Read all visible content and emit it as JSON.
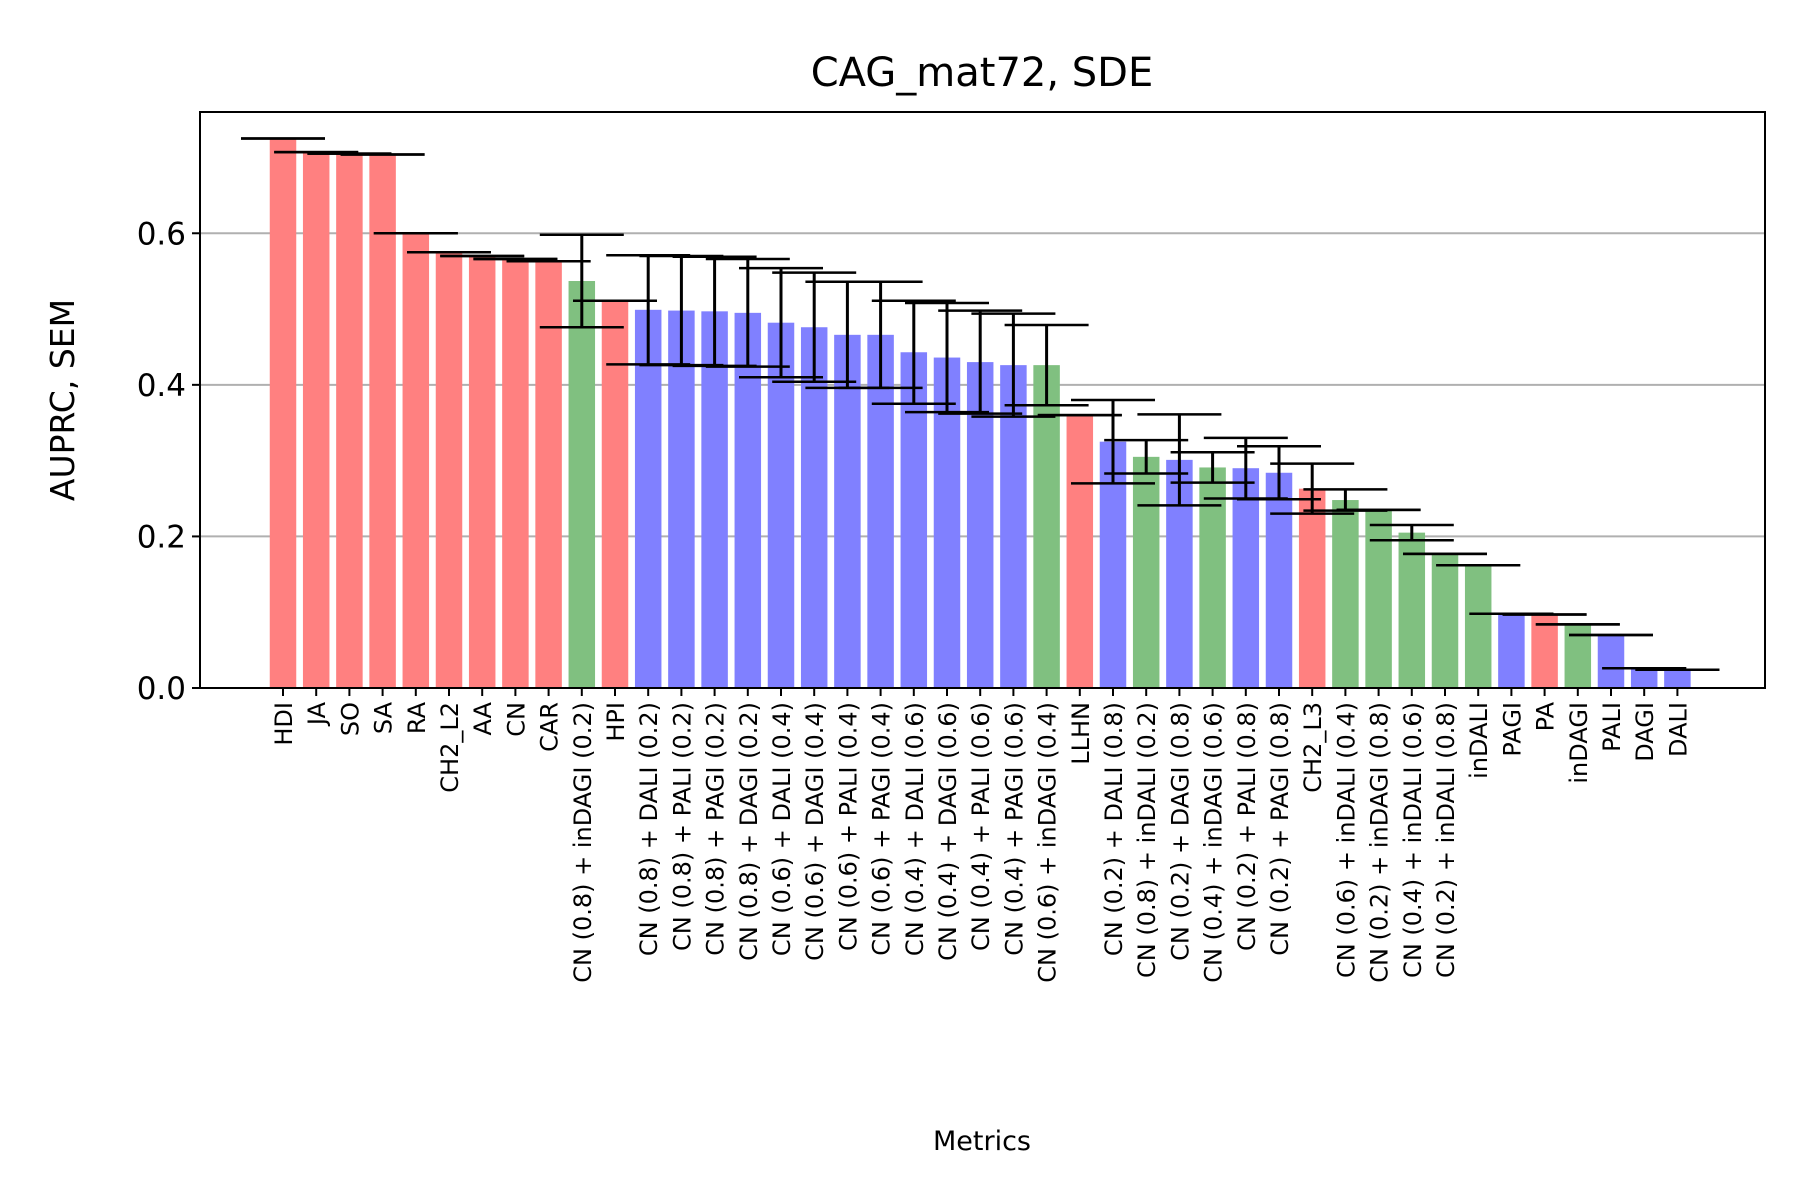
{
  "chart_data": {
    "type": "bar",
    "title": "CAG_mat72, SDE",
    "xlabel": "Metrics",
    "ylabel": "AUPRC, SEM",
    "ylim": [
      0,
      0.76
    ],
    "yticks": [
      "0.0",
      "0.2",
      "0.4",
      "0.6"
    ],
    "grid": "horizontal",
    "colors": {
      "red": "#ff8080",
      "green": "#80c080",
      "blue": "#8080ff"
    },
    "categories": [
      "HDI",
      "JA",
      "SO",
      "SA",
      "RA",
      "CH2_L2",
      "AA",
      "CN",
      "CAR",
      "CN (0.8) + inDAGI (0.2)",
      "HPI",
      "CN (0.8) + DALI (0.2)",
      "CN (0.8) + PALI (0.2)",
      "CN (0.8) + PAGI (0.2)",
      "CN (0.8) + DAGI (0.2)",
      "CN (0.6) + DALI (0.4)",
      "CN (0.6) + DAGI (0.4)",
      "CN (0.6) + PALI (0.4)",
      "CN (0.6) + PAGI (0.4)",
      "CN (0.4) + DALI (0.6)",
      "CN (0.4) + DAGI (0.6)",
      "CN (0.4) + PALI (0.6)",
      "CN (0.4) + PAGI (0.6)",
      "CN (0.6) + inDAGI (0.4)",
      "LLHN",
      "CN (0.2) + DALI (0.8)",
      "CN (0.8) + inDALI (0.2)",
      "CN (0.2) + DAGI (0.8)",
      "CN (0.4) + inDAGI (0.6)",
      "CN (0.2) + PALI (0.8)",
      "CN (0.2) + PAGI (0.8)",
      "CH2_L3",
      "CN (0.6) + inDALI (0.4)",
      "CN (0.2) + inDAGI (0.8)",
      "CN (0.4) + inDALI (0.6)",
      "CN (0.2) + inDALI (0.8)",
      "inDALI",
      "PAGI",
      "PA",
      "inDAGI",
      "PALI",
      "DAGI",
      "DALI"
    ],
    "values": [
      0.725,
      0.707,
      0.705,
      0.704,
      0.6,
      0.575,
      0.57,
      0.566,
      0.563,
      0.537,
      0.511,
      0.499,
      0.498,
      0.497,
      0.495,
      0.482,
      0.476,
      0.466,
      0.466,
      0.443,
      0.436,
      0.43,
      0.426,
      0.426,
      0.36,
      0.325,
      0.305,
      0.301,
      0.291,
      0.29,
      0.284,
      0.263,
      0.248,
      0.235,
      0.205,
      0.177,
      0.162,
      0.098,
      0.097,
      0.084,
      0.07,
      0.026,
      0.024
    ],
    "errors": [
      0.0,
      0.0,
      0.0,
      0.0,
      0.0,
      0.0,
      0.0,
      0.0,
      0.0,
      0.061,
      0.0,
      0.072,
      0.072,
      0.072,
      0.071,
      0.072,
      0.072,
      0.07,
      0.07,
      0.068,
      0.072,
      0.068,
      0.068,
      0.053,
      0.0,
      0.055,
      0.022,
      0.06,
      0.02,
      0.04,
      0.035,
      0.033,
      0.014,
      0.0,
      0.01,
      0.0,
      0.0,
      0.0,
      0.0,
      0.0,
      0.0,
      0.0,
      0.0
    ],
    "bar_colors": [
      "red",
      "red",
      "red",
      "red",
      "red",
      "red",
      "red",
      "red",
      "red",
      "green",
      "red",
      "blue",
      "blue",
      "blue",
      "blue",
      "blue",
      "blue",
      "blue",
      "blue",
      "blue",
      "blue",
      "blue",
      "blue",
      "green",
      "red",
      "blue",
      "green",
      "blue",
      "green",
      "blue",
      "blue",
      "red",
      "green",
      "green",
      "green",
      "green",
      "green",
      "blue",
      "red",
      "green",
      "blue",
      "blue",
      "blue"
    ]
  }
}
